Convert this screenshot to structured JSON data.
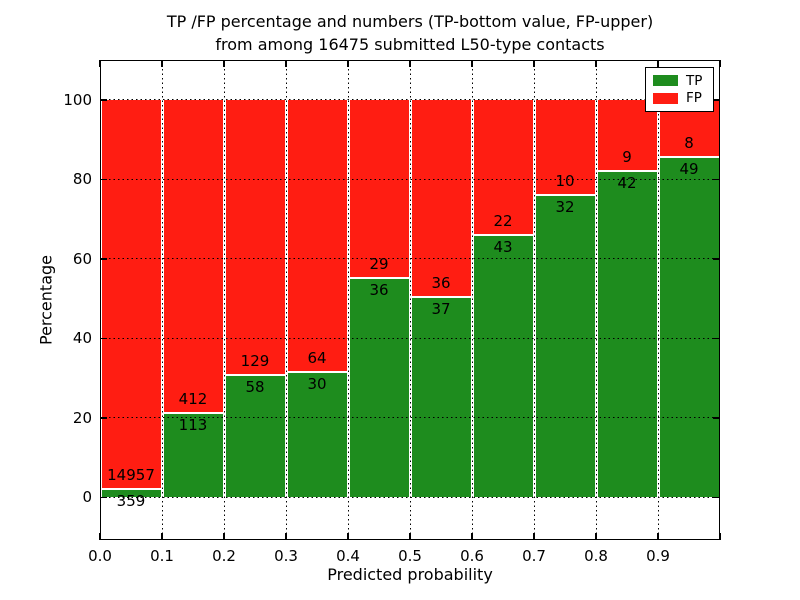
{
  "title": {
    "line1": "TP /FP percentage and numbers (TP-bottom value, FP-upper)",
    "line2": "from among 16475 submitted L50-type contacts"
  },
  "axes": {
    "xlabel": "Predicted probability",
    "ylabel": "Percentage",
    "x_tick_labels": [
      "0.0",
      "0.1",
      "0.2",
      "0.3",
      "0.4",
      "0.5",
      "0.6",
      "0.7",
      "0.8",
      "0.9"
    ],
    "y_tick_labels": [
      "0",
      "20",
      "40",
      "60",
      "80",
      "100"
    ],
    "y_tick_values": [
      0,
      20,
      40,
      60,
      80,
      100
    ]
  },
  "legend": {
    "entries": [
      {
        "label": "TP",
        "color": "#1e8c1e"
      },
      {
        "label": "FP",
        "color": "#ff1d12"
      }
    ]
  },
  "colors": {
    "tp": "#1e8c1e",
    "fp": "#ff1d12",
    "grid": "#000000",
    "frame": "#000000",
    "background": "#ffffff"
  },
  "chart_data": {
    "type": "bar",
    "stacked": true,
    "normalized_to_percent": true,
    "title": "TP /FP percentage and numbers (TP-bottom value, FP-upper) from among 16475 submitted L50-type contacts",
    "xlabel": "Predicted probability",
    "ylabel": "Percentage",
    "xlim": [
      0,
      1
    ],
    "ylim": [
      -10.7,
      110
    ],
    "grid": "dotted",
    "legend_position": "upper right",
    "total_contacts": 16475,
    "bins": [
      {
        "range": "0.0-0.1",
        "tp": 359,
        "fp": 14957,
        "tp_percent": 2.34
      },
      {
        "range": "0.1-0.2",
        "tp": 113,
        "fp": 412,
        "tp_percent": 21.52
      },
      {
        "range": "0.2-0.3",
        "tp": 58,
        "fp": 129,
        "tp_percent": 31.02
      },
      {
        "range": "0.3-0.4",
        "tp": 30,
        "fp": 64,
        "tp_percent": 31.91
      },
      {
        "range": "0.4-0.5",
        "tp": 36,
        "fp": 29,
        "tp_percent": 55.38
      },
      {
        "range": "0.5-0.6",
        "tp": 37,
        "fp": 36,
        "tp_percent": 50.68
      },
      {
        "range": "0.6-0.7",
        "tp": 43,
        "fp": 22,
        "tp_percent": 66.15
      },
      {
        "range": "0.7-0.8",
        "tp": 32,
        "fp": 10,
        "tp_percent": 76.19
      },
      {
        "range": "0.8-0.9",
        "tp": 42,
        "fp": 9,
        "tp_percent": 82.35
      },
      {
        "range": "0.9-1.0",
        "tp": 49,
        "fp": 8,
        "tp_percent": 85.96
      }
    ]
  }
}
